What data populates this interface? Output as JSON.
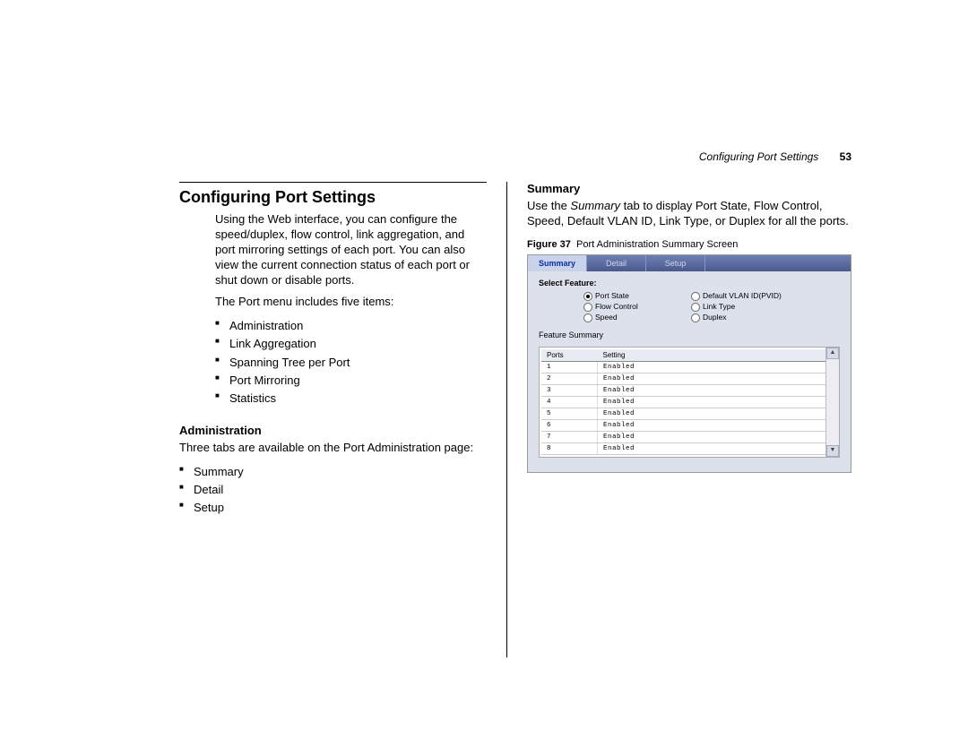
{
  "header": {
    "running_title": "Configuring Port Settings",
    "page_number": "53"
  },
  "left_col": {
    "h1": "Configuring Port Settings",
    "intro": "Using the Web interface, you can configure the speed/duplex, flow control, link aggregation, and port mirroring settings of each port. You can also view the current connection status of each port or shut down or disable ports.",
    "menu_lead": "The Port menu includes five items:",
    "menu_items": [
      "Administration",
      "Link Aggregation",
      "Spanning Tree per Port",
      "Port Mirroring",
      "Statistics"
    ],
    "admin_h2": "Administration",
    "admin_intro": "Three tabs are available on the Port Administration page:",
    "admin_tabs": [
      "Summary",
      "Detail",
      "Setup"
    ]
  },
  "right_col": {
    "summary_h2": "Summary",
    "summary_prefix": "Use the ",
    "summary_italic": "Summary",
    "summary_rest": " tab to display Port State, Flow Control, Speed, Default VLAN ID, Link Type, or Duplex for all the ports.",
    "figure_label": "Figure 37",
    "figure_caption": "Port Administration Summary Screen"
  },
  "screenshot": {
    "background_color": "#dde1ec",
    "tab_gradient_top": "#6d7fb3",
    "tab_gradient_bottom": "#4a5a8f",
    "active_tab_bg": "#c9d2e8",
    "active_tab_color": "#0030aa",
    "tabs": [
      {
        "label": "Summary",
        "active": true
      },
      {
        "label": "Detail",
        "active": false
      },
      {
        "label": "Setup",
        "active": false
      }
    ],
    "select_feature_label": "Select Feature:",
    "feature_radios_col1": [
      {
        "label": "Port State",
        "selected": true
      },
      {
        "label": "Flow Control",
        "selected": false
      },
      {
        "label": "Speed",
        "selected": false
      }
    ],
    "feature_radios_col2": [
      {
        "label": "Default VLAN ID(PVID)",
        "selected": false
      },
      {
        "label": "Link Type",
        "selected": false
      },
      {
        "label": "Duplex",
        "selected": false
      }
    ],
    "feature_summary_label": "Feature Summary",
    "table": {
      "columns": [
        "Ports",
        "Setting"
      ],
      "rows": [
        [
          "1",
          "Enabled"
        ],
        [
          "2",
          "Enabled"
        ],
        [
          "3",
          "Enabled"
        ],
        [
          "4",
          "Enabled"
        ],
        [
          "5",
          "Enabled"
        ],
        [
          "6",
          "Enabled"
        ],
        [
          "7",
          "Enabled"
        ],
        [
          "8",
          "Enabled"
        ]
      ]
    }
  }
}
